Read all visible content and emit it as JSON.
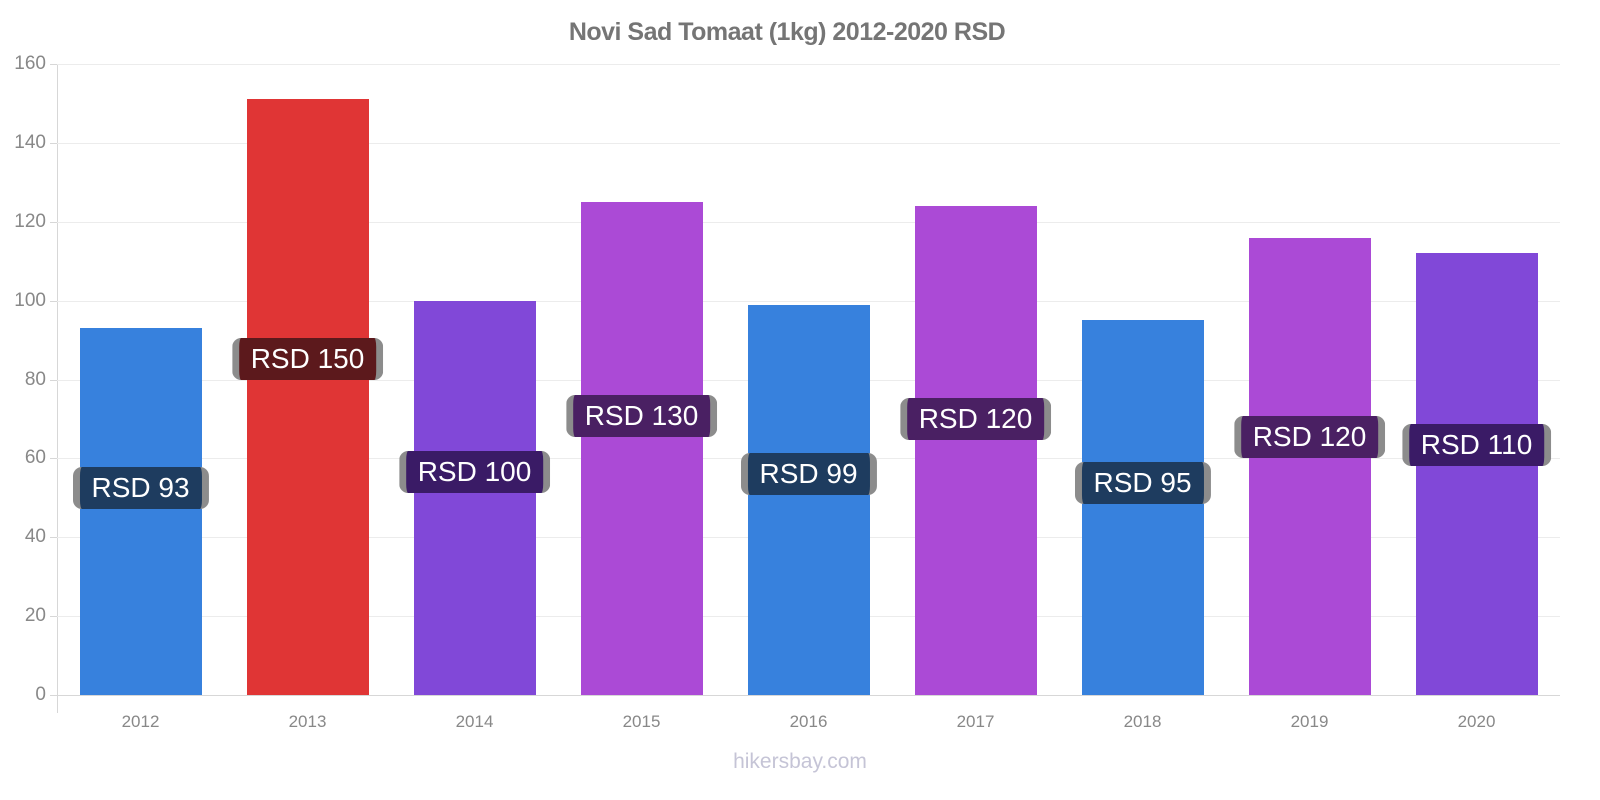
{
  "title": "Novi Sad Tomaat (1kg) 2012-2020 RSD",
  "watermark": "hikersbay.com",
  "chart_data": {
    "type": "bar",
    "title": "Novi Sad Tomaat (1kg) 2012-2020 RSD",
    "xlabel": "",
    "ylabel": "",
    "currency": "RSD",
    "categories": [
      "2012",
      "2013",
      "2014",
      "2015",
      "2016",
      "2017",
      "2018",
      "2019",
      "2020"
    ],
    "values": [
      93,
      151,
      100,
      125,
      99,
      124,
      95,
      116,
      112
    ],
    "bar_labels": [
      "RSD 93",
      "RSD 150",
      "RSD 100",
      "RSD 130",
      "RSD 99",
      "RSD 120",
      "RSD 95",
      "RSD 120",
      "RSD 110"
    ],
    "bar_colors": [
      "#3781DD",
      "#E03535",
      "#8148D8",
      "#AB4AD6",
      "#3781DD",
      "#AB4AD6",
      "#3781DD",
      "#AB4AD6",
      "#8148D8"
    ],
    "label_bg_colors": [
      "#1E3C5F",
      "#5C191C",
      "#3A1B66",
      "#4A2063",
      "#1E3C5F",
      "#4A2063",
      "#1E3C5F",
      "#4A2063",
      "#3A1B66"
    ],
    "y_ticks": [
      0,
      20,
      40,
      60,
      80,
      100,
      120,
      140,
      160
    ],
    "ylim": [
      0,
      160
    ],
    "grid": true,
    "legend_position": "none"
  },
  "colors": {
    "title_text": "#757575",
    "axis_line": "#d7d7d7",
    "gridline": "#ececec",
    "tick_text": "#888888",
    "bar_label_text": "#ffffff",
    "bar_label_border": "#8c8c8c",
    "watermark_text": "#c5c4d6",
    "background": "#ffffff"
  }
}
